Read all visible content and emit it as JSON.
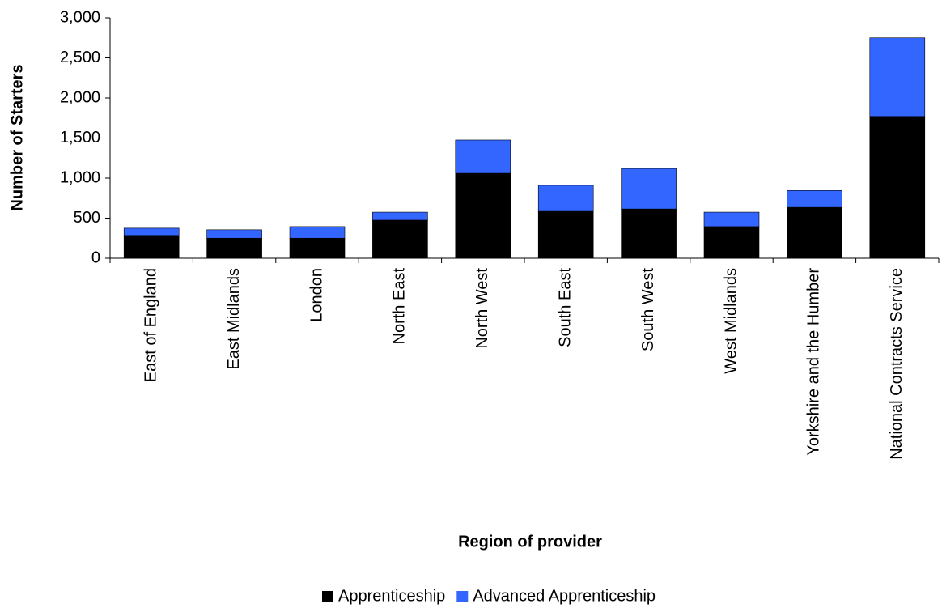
{
  "chart_data": {
    "type": "stacked_bar",
    "x_label": "Region of provider",
    "y_label": "Number of Starters",
    "categories": [
      "East of England",
      "East Midlands",
      "London",
      "North East",
      "North West",
      "South East",
      "South West",
      "West Midlands",
      "Yorkshire and the Humber",
      "National Contracts Service"
    ],
    "series": [
      {
        "name": "Apprenticeship",
        "color": "#000000",
        "values": [
          285,
          250,
          250,
          475,
          1060,
          585,
          615,
          395,
          635,
          1770
        ]
      },
      {
        "name": "Advanced Apprenticeship",
        "color": "#3366ff",
        "values": [
          90,
          105,
          145,
          100,
          415,
          325,
          505,
          180,
          210,
          980
        ]
      }
    ],
    "ylim": [
      0,
      3000
    ],
    "yticks": [
      0,
      500,
      {
        "value": 1000,
        "label": "1,000"
      },
      {
        "value": 1500,
        "label": "1,500"
      },
      {
        "value": 2000,
        "label": "2,000"
      },
      {
        "value": 2500,
        "label": "2,500"
      },
      {
        "value": 3000,
        "label": "3,000"
      }
    ],
    "legend": "bottom"
  }
}
